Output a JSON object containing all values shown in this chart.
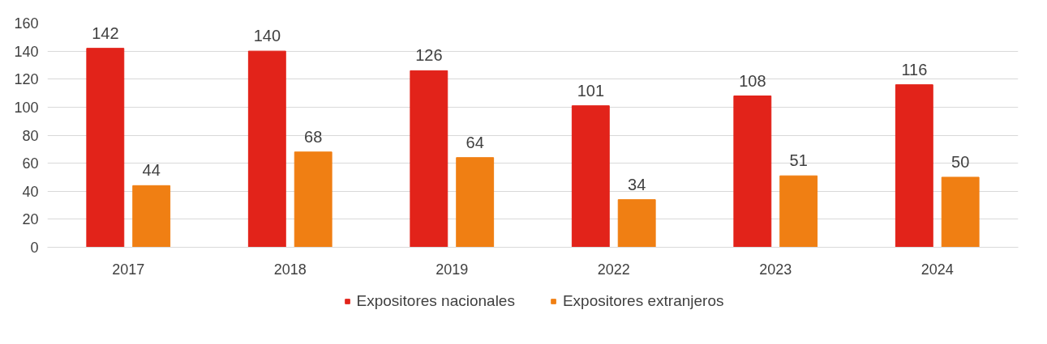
{
  "chart_data": {
    "type": "bar",
    "categories": [
      "2017",
      "2018",
      "2019",
      "2022",
      "2023",
      "2024"
    ],
    "series": [
      {
        "name": "Expositores nacionales",
        "color": "#e2231a",
        "values": [
          142,
          140,
          126,
          101,
          108,
          116
        ]
      },
      {
        "name": "Expositores extranjeros",
        "color": "#f07f13",
        "values": [
          44,
          68,
          64,
          34,
          51,
          50
        ]
      }
    ],
    "ylim": [
      0,
      160
    ],
    "yticks": [
      0,
      20,
      40,
      60,
      80,
      100,
      120,
      140,
      160
    ],
    "grid": "y",
    "legend": "bottom",
    "data_labels": true
  }
}
